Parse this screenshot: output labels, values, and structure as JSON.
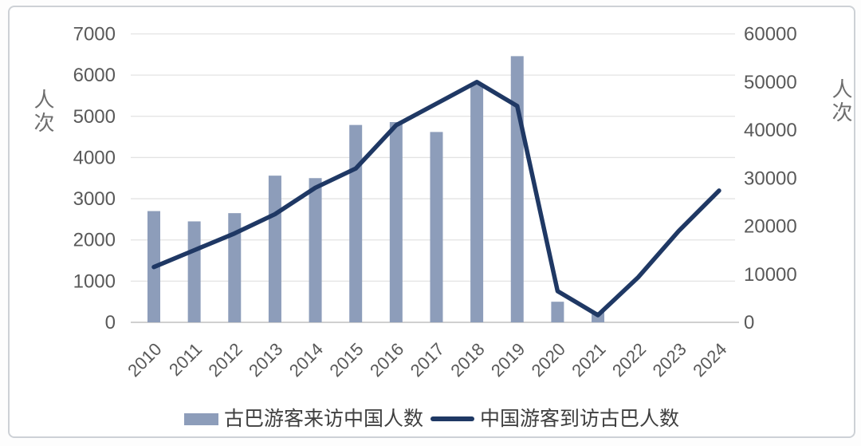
{
  "chart_data": {
    "type": "combo-bar-line",
    "title": "",
    "categories": [
      "2010",
      "2011",
      "2012",
      "2013",
      "2014",
      "2015",
      "2016",
      "2017",
      "2018",
      "2019",
      "2020",
      "2021",
      "2022",
      "2023",
      "2024"
    ],
    "series": [
      {
        "name": "古巴游客来访中国人数",
        "type": "bar",
        "axis": "left",
        "values": [
          2700,
          2450,
          2650,
          3560,
          3500,
          4790,
          4860,
          4620,
          5790,
          6460,
          500,
          250,
          null,
          null,
          null
        ]
      },
      {
        "name": "中国游客到访古巴人数",
        "type": "line",
        "axis": "right",
        "values": [
          11500,
          15000,
          18500,
          22500,
          28000,
          32000,
          41000,
          45500,
          50000,
          45000,
          6500,
          1500,
          9400,
          19000,
          27400
        ]
      }
    ],
    "left_axis": {
      "label": "人次",
      "min": 0,
      "max": 7000,
      "step": 1000,
      "ticks": [
        "0",
        "1000",
        "2000",
        "3000",
        "4000",
        "5000",
        "6000",
        "7000"
      ]
    },
    "right_axis": {
      "label": "人次",
      "min": 0,
      "max": 60000,
      "step": 10000,
      "ticks": [
        "0",
        "10000",
        "20000",
        "30000",
        "40000",
        "50000",
        "60000"
      ]
    },
    "grid": true,
    "legend_position": "bottom"
  },
  "colors": {
    "bar": "#8d9dba",
    "line": "#1f3864",
    "grid": "#e3e3e3",
    "axis_line": "#c0c0c0",
    "tick_text": "#595959",
    "legend_text": "#3f3f3f"
  }
}
